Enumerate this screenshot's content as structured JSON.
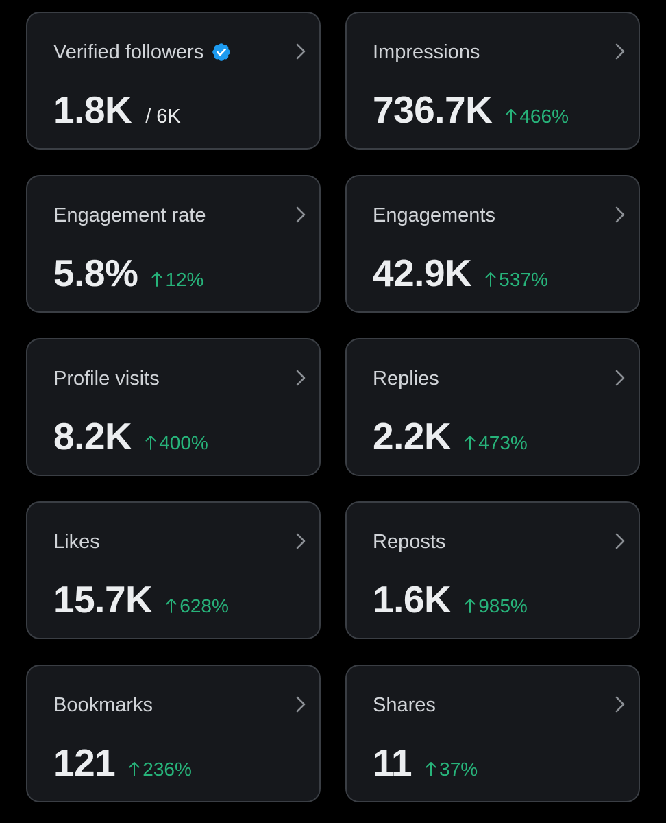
{
  "colors": {
    "background": "#000000",
    "card": "#16181c",
    "card_border": "#3a3e44",
    "label": "#d1d4d8",
    "value": "#eceef0",
    "increase": "#27b37a",
    "verified": "#1d9bf0"
  },
  "metrics": [
    {
      "label": "Verified followers",
      "value": "1.8K",
      "total": "/ 6K"
    },
    {
      "label": "Impressions",
      "value": "736.7K",
      "change": "466%"
    },
    {
      "label": "Engagement rate",
      "value": "5.8%",
      "change": "12%"
    },
    {
      "label": "Engagements",
      "value": "42.9K",
      "change": "537%"
    },
    {
      "label": "Profile visits",
      "value": "8.2K",
      "change": "400%"
    },
    {
      "label": "Replies",
      "value": "2.2K",
      "change": "473%"
    },
    {
      "label": "Likes",
      "value": "15.7K",
      "change": "628%"
    },
    {
      "label": "Reposts",
      "value": "1.6K",
      "change": "985%"
    },
    {
      "label": "Bookmarks",
      "value": "121",
      "change": "236%"
    },
    {
      "label": "Shares",
      "value": "11",
      "change": "37%"
    }
  ]
}
